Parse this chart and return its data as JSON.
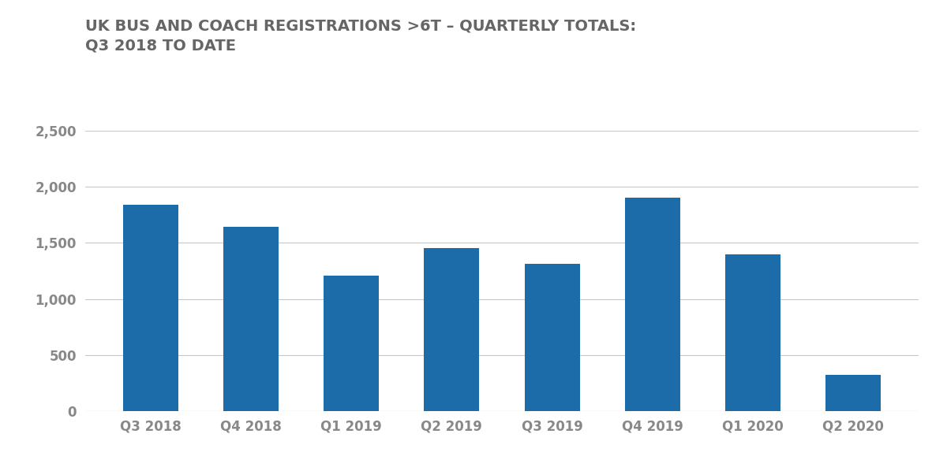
{
  "title_line1": "UK BUS AND COACH REGISTRATIONS >6T – QUARTERLY TOTALS:",
  "title_line2": "Q3 2018 TO DATE",
  "categories": [
    "Q3 2018",
    "Q4 2018",
    "Q1 2019",
    "Q2 2019",
    "Q3 2019",
    "Q4 2019",
    "Q1 2020",
    "Q2 2020"
  ],
  "values": [
    1840,
    1640,
    1205,
    1450,
    1310,
    1900,
    1400,
    320
  ],
  "bar_color": "#1b6ca8",
  "background_color": "#ffffff",
  "ylim": [
    0,
    2500
  ],
  "yticks": [
    0,
    500,
    1000,
    1500,
    2000,
    2500
  ],
  "ytick_labels": [
    "0",
    "500",
    "1,000",
    "1,500",
    "2,000",
    "2,500"
  ],
  "grid_color": "#c8c8c8",
  "title_color": "#666666",
  "tick_color": "#888888",
  "title_fontsize": 14,
  "tick_fontsize": 12,
  "bar_width": 0.55
}
